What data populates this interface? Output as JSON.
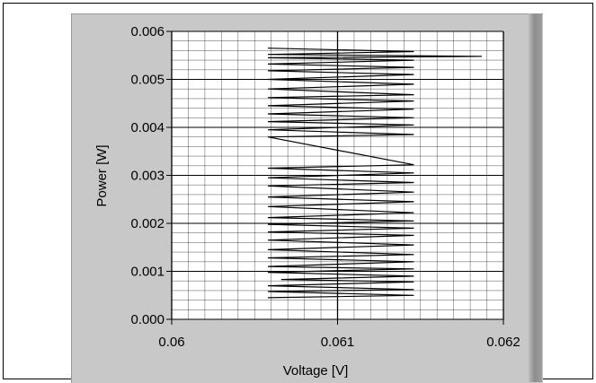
{
  "chart_data": {
    "type": "line",
    "title": "",
    "xlabel": "Voltage [V]",
    "ylabel": "Power [W]",
    "xlim": [
      0.06,
      0.062
    ],
    "ylim": [
      0.0,
      0.006
    ],
    "x_ticks": [
      "0.06",
      "0.061",
      "0.062"
    ],
    "y_ticks": [
      "0.000",
      "0.001",
      "0.002",
      "0.003",
      "0.004",
      "0.005",
      "0.006"
    ],
    "grid": true,
    "series": [
      {
        "color": "#000000",
        "points": [
          [
            0.06058,
            0.00045
          ],
          [
            0.06146,
            0.0005
          ],
          [
            0.06058,
            0.00058
          ],
          [
            0.06146,
            0.00062
          ],
          [
            0.06058,
            0.0007
          ],
          [
            0.06146,
            0.00078
          ],
          [
            0.06066,
            0.00083
          ],
          [
            0.06146,
            0.0009
          ],
          [
            0.06058,
            0.00098
          ],
          [
            0.06146,
            0.00105
          ],
          [
            0.06058,
            0.0011
          ],
          [
            0.06146,
            0.0012
          ],
          [
            0.06058,
            0.00128
          ],
          [
            0.06146,
            0.00135
          ],
          [
            0.06058,
            0.00145
          ],
          [
            0.06146,
            0.00155
          ],
          [
            0.06058,
            0.00165
          ],
          [
            0.06146,
            0.00175
          ],
          [
            0.06058,
            0.00182
          ],
          [
            0.06146,
            0.0019
          ],
          [
            0.06058,
            0.00198
          ],
          [
            0.06146,
            0.00205
          ],
          [
            0.06058,
            0.00212
          ],
          [
            0.06146,
            0.00222
          ],
          [
            0.06058,
            0.00235
          ],
          [
            0.06146,
            0.00245
          ],
          [
            0.06058,
            0.00255
          ],
          [
            0.06146,
            0.00265
          ],
          [
            0.06058,
            0.00278
          ],
          [
            0.06146,
            0.00285
          ],
          [
            0.06058,
            0.00295
          ],
          [
            0.06146,
            0.00305
          ],
          [
            0.06058,
            0.00315
          ],
          [
            0.06146,
            0.00322
          ],
          [
            0.06058,
            0.0038
          ],
          [
            0.06146,
            0.00385
          ],
          [
            0.06058,
            0.00395
          ],
          [
            0.06146,
            0.00405
          ],
          [
            0.06058,
            0.00412
          ],
          [
            0.06146,
            0.0042
          ],
          [
            0.06058,
            0.00428
          ],
          [
            0.06146,
            0.00438
          ],
          [
            0.06058,
            0.00445
          ],
          [
            0.06146,
            0.00455
          ],
          [
            0.06058,
            0.00462
          ],
          [
            0.06146,
            0.00468
          ],
          [
            0.06058,
            0.0048
          ],
          [
            0.06146,
            0.0049
          ],
          [
            0.06058,
            0.005
          ],
          [
            0.06146,
            0.0051
          ],
          [
            0.06058,
            0.00518
          ],
          [
            0.06146,
            0.00525
          ],
          [
            0.06058,
            0.00532
          ],
          [
            0.06146,
            0.0054
          ],
          [
            0.06058,
            0.00545
          ],
          [
            0.06187,
            0.00548
          ],
          [
            0.06058,
            0.00552
          ],
          [
            0.06146,
            0.00558
          ],
          [
            0.06058,
            0.00565
          ]
        ]
      }
    ]
  }
}
